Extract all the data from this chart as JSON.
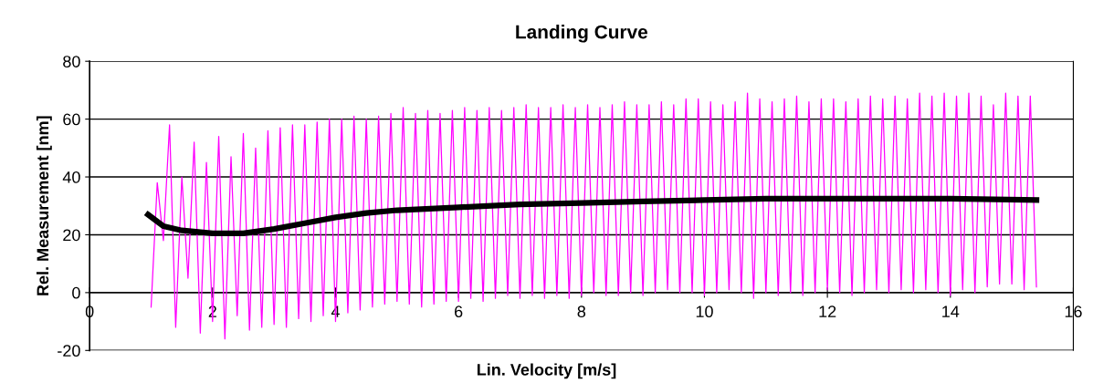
{
  "chart_data": {
    "type": "line",
    "title": "Landing Curve",
    "xlabel": "Lin. Velocity [m/s]",
    "ylabel": "Rel. Measurement [nm]",
    "xlim": [
      0,
      16
    ],
    "xticks": [
      0,
      2,
      4,
      6,
      8,
      10,
      12,
      14,
      16
    ],
    "ylim": [
      -20,
      80
    ],
    "yticks": [
      -20,
      0,
      20,
      40,
      60,
      80
    ],
    "grid": "y",
    "series": [
      {
        "color": "#ff00ff",
        "x": [
          1.0,
          1.1,
          1.2,
          1.3,
          1.4,
          1.5,
          1.6,
          1.7,
          1.8,
          1.9,
          2.0,
          2.1,
          2.2,
          2.3,
          2.4,
          2.5,
          2.6,
          2.7,
          2.8,
          2.9,
          3.0,
          3.1,
          3.2,
          3.3,
          3.4,
          3.5,
          3.6,
          3.7,
          3.8,
          3.9,
          4.0,
          4.1,
          4.2,
          4.3,
          4.4,
          4.5,
          4.6,
          4.7,
          4.8,
          4.9,
          5.0,
          5.1,
          5.2,
          5.3,
          5.4,
          5.5,
          5.6,
          5.7,
          5.8,
          5.9,
          6.0,
          6.1,
          6.2,
          6.3,
          6.4,
          6.5,
          6.6,
          6.7,
          6.8,
          6.9,
          7.0,
          7.1,
          7.2,
          7.3,
          7.4,
          7.5,
          7.6,
          7.7,
          7.8,
          7.9,
          8.0,
          8.1,
          8.2,
          8.3,
          8.4,
          8.5,
          8.6,
          8.7,
          8.8,
          8.9,
          9.0,
          9.1,
          9.2,
          9.3,
          9.4,
          9.5,
          9.6,
          9.7,
          9.8,
          9.9,
          10.0,
          10.1,
          10.2,
          10.3,
          10.4,
          10.5,
          10.6,
          10.7,
          10.8,
          10.9,
          11.0,
          11.1,
          11.2,
          11.3,
          11.4,
          11.5,
          11.6,
          11.7,
          11.8,
          11.9,
          12.0,
          12.1,
          12.2,
          12.3,
          12.4,
          12.5,
          12.6,
          12.7,
          12.8,
          12.9,
          13.0,
          13.1,
          13.2,
          13.3,
          13.4,
          13.5,
          13.6,
          13.7,
          13.8,
          13.9,
          14.0,
          14.1,
          14.2,
          14.3,
          14.4,
          14.5,
          14.6,
          14.7,
          14.8,
          14.9,
          15.0,
          15.1,
          15.2,
          15.3,
          15.4
        ],
        "values": [
          -5,
          38,
          18,
          58,
          -12,
          40,
          5,
          52,
          -14,
          45,
          -10,
          54,
          -16,
          47,
          -8,
          55,
          -13,
          50,
          -12,
          56,
          -11,
          57,
          -12,
          58,
          -9,
          58,
          -10,
          59,
          -8,
          60,
          -10,
          60,
          -7,
          61,
          -6,
          60,
          -5,
          61,
          -4,
          62,
          -3,
          64,
          -4,
          62,
          -5,
          63,
          -4,
          62,
          -3,
          63,
          -3,
          64,
          -2,
          63,
          -3,
          64,
          -2,
          63,
          -1,
          64,
          -2,
          65,
          -1,
          64,
          -2,
          64,
          -1,
          65,
          -2,
          64,
          -1,
          65,
          0,
          64,
          -1,
          65,
          -1,
          66,
          0,
          65,
          -1,
          65,
          0,
          66,
          1,
          65,
          0,
          67,
          0,
          67,
          -1,
          66,
          0,
          65,
          1,
          66,
          0,
          69,
          -2,
          67,
          0,
          66,
          -1,
          67,
          0,
          68,
          -1,
          66,
          0,
          67,
          1,
          67,
          0,
          66,
          -1,
          67,
          0,
          68,
          1,
          67,
          0,
          68,
          1,
          67,
          0,
          69,
          1,
          68,
          0,
          69,
          -1,
          68,
          1,
          69,
          0,
          68,
          2,
          65,
          3,
          69,
          3,
          68,
          1,
          68,
          2
        ]
      },
      {
        "color": "#000000",
        "x": [
          0.95,
          1.2,
          1.5,
          2.0,
          2.5,
          3.0,
          3.5,
          4.0,
          4.5,
          5.0,
          6.0,
          7.0,
          8.0,
          9.0,
          10.0,
          11.0,
          12.0,
          13.0,
          14.0,
          15.4
        ],
        "values": [
          27,
          23,
          21.5,
          20.5,
          20.5,
          22,
          24,
          26,
          27.5,
          28.5,
          29.5,
          30.5,
          31,
          31.5,
          32,
          32.5,
          32.5,
          32.5,
          32.5,
          32
        ]
      }
    ]
  }
}
